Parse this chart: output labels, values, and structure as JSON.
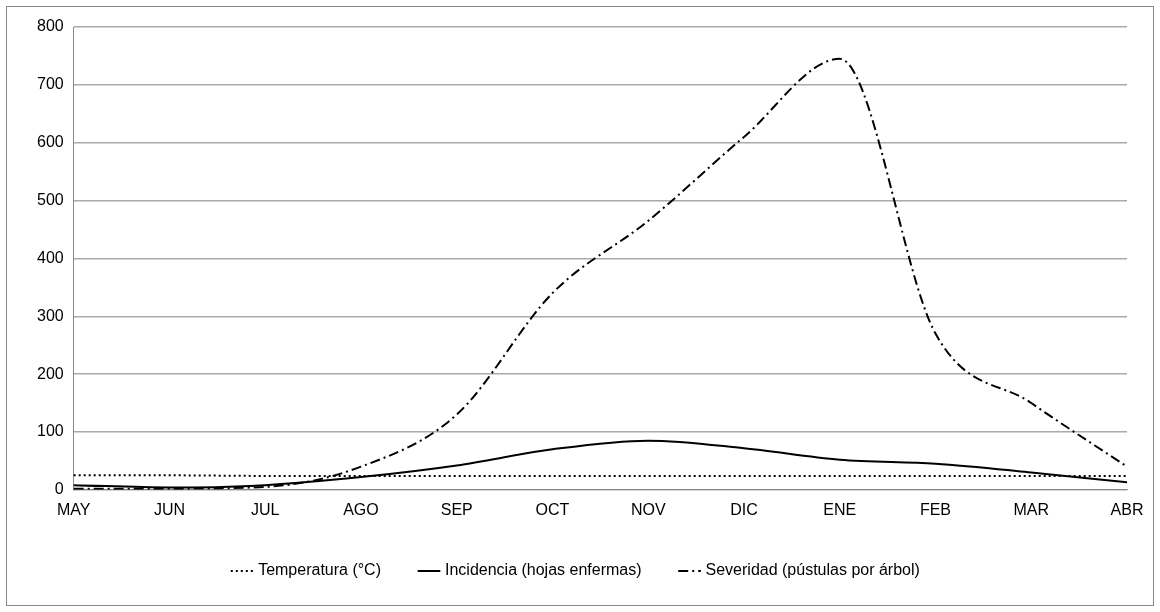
{
  "chart_data": {
    "type": "line",
    "categories": [
      "MAY",
      "JUN",
      "JUL",
      "AGO",
      "SEP",
      "OCT",
      "NOV",
      "DIC",
      "ENE",
      "FEB",
      "MAR",
      "ABR"
    ],
    "series": [
      {
        "name": "Temperatura (°C)",
        "color": "#000000",
        "line_style": "dotted",
        "values": [
          25,
          25,
          24,
          24,
          24,
          24,
          24,
          24,
          24,
          24,
          24,
          24
        ]
      },
      {
        "name": "Incidencia (hojas enfermas)",
        "color": "#000000",
        "line_style": "solid",
        "values": [
          8,
          4,
          8,
          22,
          42,
          70,
          85,
          72,
          52,
          45,
          30,
          13
        ]
      },
      {
        "name": "Severidad (pústulas por árbol)",
        "color": "#000000",
        "line_style": "dashed",
        "values": [
          2,
          2,
          5,
          40,
          130,
          340,
          465,
          610,
          745,
          270,
          150,
          40
        ]
      }
    ],
    "ylim": [
      0,
      800
    ],
    "yticks": [
      0,
      100,
      200,
      300,
      400,
      500,
      600,
      700,
      800
    ],
    "grid": "y",
    "legend": "bottom",
    "marker": "none"
  }
}
